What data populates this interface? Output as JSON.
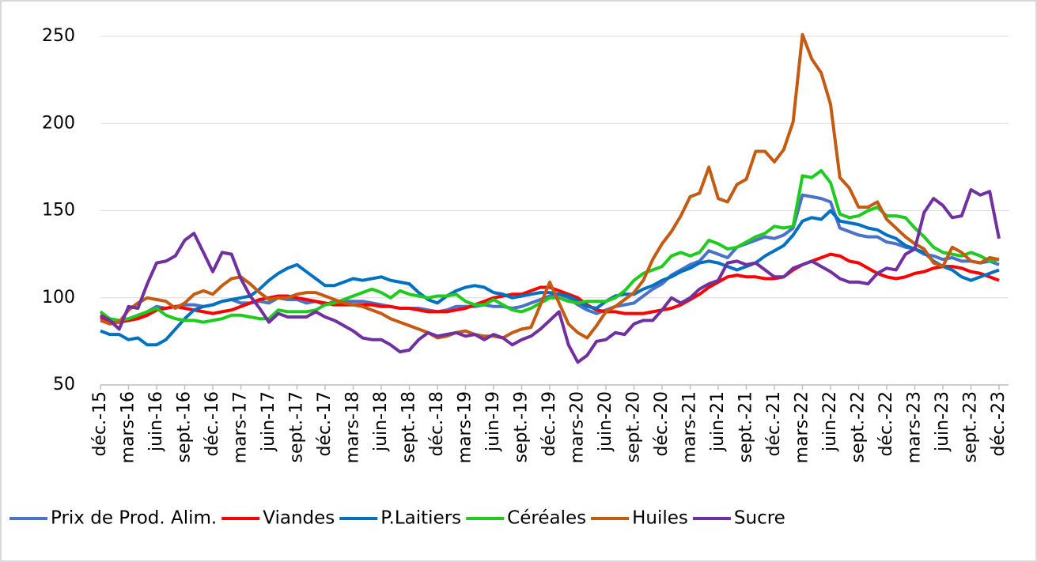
{
  "chart_data": {
    "type": "line",
    "categories": [
      "déc.-15",
      null,
      null,
      "mars-16",
      null,
      null,
      "juin-16",
      null,
      null,
      "sept.-16",
      null,
      null,
      "déc.-16",
      null,
      null,
      "mars-17",
      null,
      null,
      "juin-17",
      null,
      null,
      "sept.-17",
      null,
      null,
      "déc.-17",
      null,
      null,
      "mars-18",
      null,
      null,
      "juin-18",
      null,
      null,
      "sept.-18",
      null,
      null,
      "déc.-18",
      null,
      null,
      "mars-19",
      null,
      null,
      "juin-19",
      null,
      null,
      "sept.-19",
      null,
      null,
      "déc.-19",
      null,
      null,
      "mars-20",
      null,
      null,
      "juin-20",
      null,
      null,
      "sept.-20",
      null,
      null,
      "déc.-20",
      null,
      null,
      "mars-21",
      null,
      null,
      "juin-21",
      null,
      null,
      "sept.-21",
      null,
      null,
      "déc.-21",
      null,
      null,
      "mars-22",
      null,
      null,
      "juin-22",
      null,
      null,
      "sept.-22",
      null,
      null,
      "déc.-22",
      null,
      null,
      "mars-23",
      null,
      null,
      "juin-23",
      null,
      null,
      "sept.-23",
      null,
      null,
      "déc.-23"
    ],
    "series": [
      {
        "name": "Prix de Prod. Alim.",
        "color": "#4a72c8",
        "values": [
          88,
          87,
          86,
          88,
          89,
          92,
          95,
          94,
          95,
          96,
          96,
          95,
          96,
          98,
          99,
          97,
          97,
          98,
          97,
          100,
          99,
          99,
          97,
          98,
          96,
          98,
          98,
          98,
          98,
          97,
          96,
          95,
          94,
          94,
          94,
          93,
          92,
          93,
          95,
          95,
          95,
          96,
          95,
          95,
          94,
          95,
          97,
          99,
          101,
          102,
          100,
          96,
          93,
          91,
          93,
          95,
          96,
          97,
          101,
          105,
          108,
          113,
          116,
          119,
          121,
          127,
          125,
          123,
          129,
          131,
          133,
          135,
          134,
          136,
          140,
          159,
          158,
          157,
          155,
          140,
          138,
          136,
          135,
          135,
          132,
          131,
          129,
          128,
          125,
          124,
          122,
          123,
          121,
          121,
          120,
          121,
          119
        ]
      },
      {
        "name": "Viandes",
        "color": "#ff0000",
        "values": [
          89,
          86,
          86,
          87,
          88,
          90,
          93,
          94,
          95,
          94,
          93,
          92,
          91,
          92,
          93,
          95,
          97,
          99,
          100,
          101,
          101,
          100,
          99,
          98,
          97,
          96,
          96,
          96,
          96,
          96,
          95,
          95,
          94,
          94,
          93,
          92,
          92,
          92,
          93,
          94,
          96,
          98,
          100,
          101,
          102,
          102,
          104,
          106,
          106,
          104,
          102,
          100,
          96,
          93,
          92,
          92,
          91,
          91,
          91,
          92,
          93,
          94,
          96,
          99,
          102,
          106,
          109,
          112,
          113,
          112,
          112,
          111,
          111,
          112,
          116,
          119,
          121,
          123,
          125,
          124,
          121,
          120,
          117,
          114,
          112,
          111,
          112,
          114,
          115,
          117,
          118,
          118,
          117,
          115,
          114,
          112,
          110
        ]
      },
      {
        "name": "P.Laitiers",
        "color": "#0070c0",
        "values": [
          81,
          79,
          79,
          76,
          77,
          73,
          73,
          76,
          82,
          88,
          93,
          95,
          96,
          98,
          99,
          100,
          101,
          105,
          110,
          114,
          117,
          119,
          115,
          111,
          107,
          107,
          109,
          111,
          110,
          111,
          112,
          110,
          109,
          108,
          103,
          99,
          97,
          101,
          104,
          106,
          107,
          106,
          103,
          102,
          100,
          101,
          102,
          103,
          103,
          102,
          101,
          98,
          95,
          94,
          98,
          101,
          102,
          102,
          105,
          107,
          110,
          112,
          115,
          117,
          120,
          121,
          120,
          118,
          116,
          118,
          120,
          124,
          127,
          130,
          136,
          144,
          146,
          145,
          150,
          144,
          143,
          142,
          140,
          139,
          136,
          134,
          130,
          128,
          126,
          121,
          118,
          116,
          112,
          110,
          112,
          114,
          116
        ]
      },
      {
        "name": "Céréales",
        "color": "#1ecb1e",
        "values": [
          92,
          88,
          87,
          88,
          90,
          92,
          94,
          90,
          88,
          87,
          87,
          86,
          87,
          88,
          90,
          90,
          89,
          88,
          88,
          93,
          92,
          92,
          92,
          93,
          96,
          97,
          99,
          101,
          103,
          105,
          103,
          100,
          104,
          102,
          101,
          100,
          101,
          101,
          102,
          98,
          96,
          96,
          99,
          96,
          93,
          92,
          94,
          97,
          100,
          100,
          98,
          97,
          98,
          98,
          98,
          100,
          104,
          110,
          114,
          116,
          118,
          124,
          126,
          124,
          126,
          133,
          131,
          128,
          129,
          132,
          135,
          137,
          141,
          140,
          141,
          170,
          169,
          173,
          166,
          148,
          146,
          147,
          150,
          152,
          147,
          147,
          146,
          140,
          135,
          129,
          126,
          125,
          124,
          126,
          124,
          121,
          122
        ]
      },
      {
        "name": "Huiles",
        "color": "#c55a11",
        "values": [
          87,
          85,
          86,
          93,
          97,
          100,
          99,
          98,
          94,
          97,
          102,
          104,
          102,
          107,
          111,
          112,
          108,
          103,
          99,
          100,
          100,
          102,
          103,
          103,
          101,
          99,
          97,
          96,
          95,
          93,
          91,
          88,
          86,
          84,
          82,
          80,
          77,
          78,
          80,
          81,
          79,
          78,
          78,
          77,
          80,
          82,
          83,
          96,
          109,
          97,
          85,
          80,
          77,
          84,
          92,
          95,
          99,
          103,
          110,
          122,
          131,
          138,
          147,
          158,
          160,
          175,
          157,
          155,
          165,
          168,
          184,
          184,
          178,
          185,
          201,
          251,
          237,
          229,
          211,
          169,
          163,
          152,
          152,
          155,
          145,
          140,
          135,
          131,
          128,
          120,
          118,
          129,
          126,
          121,
          120,
          123,
          122
        ]
      },
      {
        "name": "Sucre",
        "color": "#7030a0",
        "values": [
          90,
          87,
          82,
          95,
          94,
          108,
          120,
          121,
          124,
          133,
          137,
          126,
          115,
          126,
          125,
          111,
          101,
          94,
          86,
          91,
          89,
          89,
          89,
          92,
          89,
          87,
          84,
          81,
          77,
          76,
          76,
          73,
          69,
          70,
          76,
          80,
          78,
          79,
          80,
          78,
          79,
          76,
          79,
          77,
          73,
          76,
          78,
          82,
          87,
          92,
          73,
          63,
          67,
          75,
          76,
          80,
          79,
          85,
          87,
          87,
          93,
          100,
          97,
          100,
          105,
          108,
          110,
          120,
          121,
          119,
          120,
          116,
          112,
          112,
          117,
          119,
          121,
          118,
          115,
          111,
          109,
          109,
          108,
          114,
          117,
          116,
          125,
          128,
          149,
          157,
          153,
          146,
          147,
          162,
          159,
          161,
          134
        ]
      }
    ],
    "ylim": [
      50,
      250
    ],
    "yticks": [
      50,
      100,
      150,
      200,
      250
    ],
    "grid": true
  }
}
